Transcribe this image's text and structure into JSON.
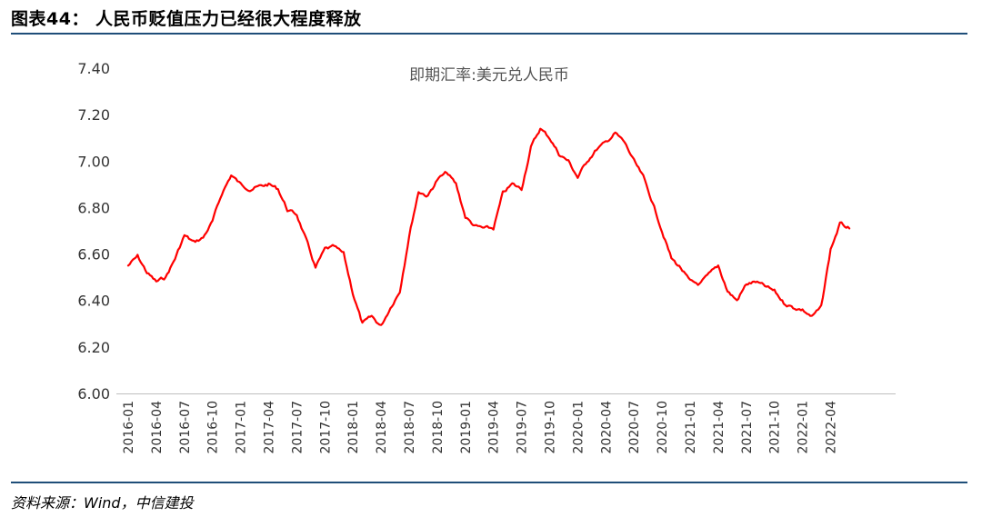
{
  "header": {
    "title": "图表44： 人民币贬值压力已经很大程度释放"
  },
  "footer": {
    "source": "资料来源：Wind，中信建投"
  },
  "colors": {
    "rule": "#1f4e79",
    "line": "#ff0000",
    "axis": "#bfbfbf"
  },
  "chart_data": {
    "type": "line",
    "title": "即期汇率:美元兑人民币",
    "xlabel": "",
    "ylabel": "",
    "ylim": [
      6.0,
      7.4
    ],
    "yticks": [
      "6.00",
      "6.20",
      "6.40",
      "6.60",
      "6.80",
      "7.00",
      "7.20",
      "7.40"
    ],
    "xticks": [
      "2016-01",
      "2016-04",
      "2016-07",
      "2016-10",
      "2017-01",
      "2017-04",
      "2017-07",
      "2017-10",
      "2018-01",
      "2018-04",
      "2018-07",
      "2018-10",
      "2019-01",
      "2019-04",
      "2019-07",
      "2019-10",
      "2020-01",
      "2020-04",
      "2020-07",
      "2020-10",
      "2021-01",
      "2021-04",
      "2021-07",
      "2021-10",
      "2022-01",
      "2022-04"
    ],
    "grid": false,
    "legend": "none",
    "series": [
      {
        "x": [
          "2016-01",
          "2016-02",
          "2016-03",
          "2016-04",
          "2016-05",
          "2016-06",
          "2016-07",
          "2016-08",
          "2016-09",
          "2016-10",
          "2016-11",
          "2016-12",
          "2017-01",
          "2017-02",
          "2017-03",
          "2017-04",
          "2017-05",
          "2017-06",
          "2017-07",
          "2017-08",
          "2017-09",
          "2017-10",
          "2017-11",
          "2017-12",
          "2018-01",
          "2018-02",
          "2018-03",
          "2018-04",
          "2018-05",
          "2018-06",
          "2018-07",
          "2018-08",
          "2018-09",
          "2018-10",
          "2018-11",
          "2018-12",
          "2019-01",
          "2019-02",
          "2019-03",
          "2019-04",
          "2019-05",
          "2019-06",
          "2019-07",
          "2019-08",
          "2019-09",
          "2019-10",
          "2019-11",
          "2019-12",
          "2020-01",
          "2020-02",
          "2020-03",
          "2020-04",
          "2020-05",
          "2020-06",
          "2020-07",
          "2020-08",
          "2020-09",
          "2020-10",
          "2020-11",
          "2020-12",
          "2021-01",
          "2021-02",
          "2021-03",
          "2021-04",
          "2021-05",
          "2021-06",
          "2021-07",
          "2021-08",
          "2021-09",
          "2021-10",
          "2021-11",
          "2021-12",
          "2022-01",
          "2022-02",
          "2022-03",
          "2022-04",
          "2022-05",
          "2022-06"
        ],
        "values": [
          6.55,
          6.59,
          6.52,
          6.48,
          6.5,
          6.58,
          6.68,
          6.65,
          6.67,
          6.74,
          6.86,
          6.94,
          6.9,
          6.88,
          6.89,
          6.9,
          6.88,
          6.79,
          6.77,
          6.66,
          6.54,
          6.62,
          6.63,
          6.6,
          6.43,
          6.3,
          6.33,
          6.29,
          6.37,
          6.44,
          6.68,
          6.87,
          6.85,
          6.92,
          6.95,
          6.9,
          6.76,
          6.72,
          6.71,
          6.71,
          6.86,
          6.9,
          6.88,
          7.06,
          7.14,
          7.1,
          7.03,
          7.0,
          6.93,
          7.0,
          7.05,
          7.08,
          7.12,
          7.08,
          7.0,
          6.93,
          6.82,
          6.7,
          6.58,
          6.54,
          6.48,
          6.47,
          6.51,
          6.55,
          6.44,
          6.4,
          6.47,
          6.48,
          6.46,
          6.44,
          6.39,
          6.37,
          6.36,
          6.33,
          6.37,
          6.62,
          6.73,
          6.71
        ]
      }
    ]
  }
}
